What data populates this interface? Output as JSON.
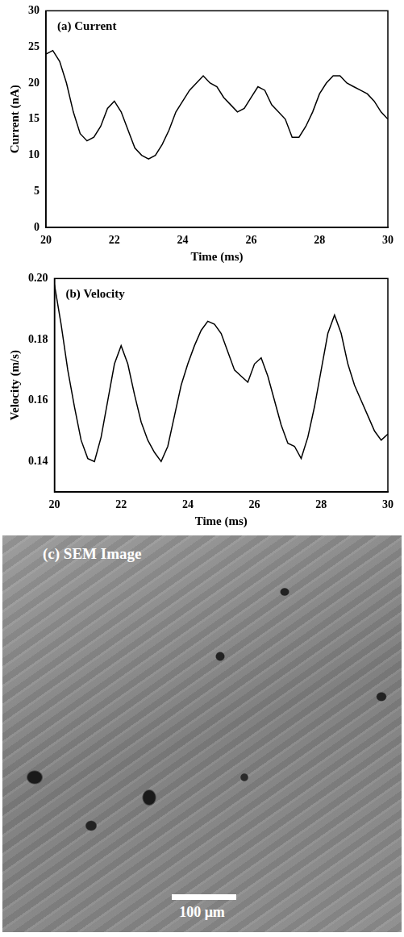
{
  "chart_data": [
    {
      "type": "line",
      "title": "(a) Current",
      "x_label": "Time (ms)",
      "y_label": "Current (nA)",
      "x": [
        20,
        20.2,
        20.4,
        20.6,
        20.8,
        21,
        21.2,
        21.4,
        21.6,
        21.8,
        22,
        22.2,
        22.4,
        22.6,
        22.8,
        23,
        23.2,
        23.4,
        23.6,
        23.8,
        24,
        24.2,
        24.4,
        24.6,
        24.8,
        25,
        25.2,
        25.4,
        25.6,
        25.8,
        26,
        26.2,
        26.4,
        26.6,
        26.8,
        27,
        27.2,
        27.4,
        27.6,
        27.8,
        28,
        28.2,
        28.4,
        28.6,
        28.8,
        29,
        29.2,
        29.4,
        29.6,
        29.8,
        30
      ],
      "values": [
        24,
        24.5,
        23,
        20,
        16,
        13,
        12,
        12.5,
        14,
        16.5,
        17.5,
        16,
        13.5,
        11,
        10,
        9.5,
        10,
        11.5,
        13.5,
        16,
        17.5,
        19,
        20,
        21,
        20,
        19.5,
        18,
        17,
        16,
        16.5,
        18,
        19.5,
        19,
        17,
        16,
        15,
        12.5,
        12.5,
        14,
        16,
        18.5,
        20,
        21,
        21,
        20,
        19.5,
        19,
        18.5,
        17.5,
        16,
        15
      ],
      "color": "#000000",
      "line_style": "solid",
      "grid": false,
      "xlim": [
        20,
        30
      ],
      "xticks": [
        20,
        22,
        24,
        26,
        28,
        30
      ],
      "ylim": [
        0,
        30
      ],
      "yticks": [
        0,
        5,
        10,
        15,
        20,
        25,
        30
      ]
    },
    {
      "type": "line",
      "title": "(b) Velocity",
      "x_label": "Time (ms)",
      "y_label": "Velocity (m/s)",
      "x": [
        20,
        20.2,
        20.4,
        20.6,
        20.8,
        21,
        21.2,
        21.4,
        21.6,
        21.8,
        22,
        22.2,
        22.4,
        22.6,
        22.8,
        23,
        23.2,
        23.4,
        23.6,
        23.8,
        24,
        24.2,
        24.4,
        24.6,
        24.8,
        25,
        25.2,
        25.4,
        25.6,
        25.8,
        26,
        26.2,
        26.4,
        26.6,
        26.8,
        27,
        27.2,
        27.4,
        27.6,
        27.8,
        28,
        28.2,
        28.4,
        28.6,
        28.8,
        29,
        29.2,
        29.4,
        29.6,
        29.8,
        30
      ],
      "values": [
        0.198,
        0.185,
        0.17,
        0.158,
        0.147,
        0.141,
        0.14,
        0.148,
        0.16,
        0.172,
        0.178,
        0.172,
        0.162,
        0.153,
        0.147,
        0.143,
        0.14,
        0.145,
        0.155,
        0.165,
        0.172,
        0.178,
        0.183,
        0.186,
        0.185,
        0.182,
        0.176,
        0.17,
        0.168,
        0.166,
        0.172,
        0.174,
        0.168,
        0.16,
        0.152,
        0.146,
        0.145,
        0.141,
        0.148,
        0.158,
        0.17,
        0.182,
        0.188,
        0.182,
        0.172,
        0.165,
        0.16,
        0.155,
        0.15,
        0.147,
        0.149
      ],
      "color": "#000000",
      "line_style": "solid",
      "grid": false,
      "xlim": [
        20,
        30
      ],
      "xticks": [
        20,
        22,
        24,
        26,
        28,
        30
      ],
      "ylim": [
        0.13,
        0.2
      ],
      "yticks": [
        0.14,
        0.16,
        0.18,
        {
          "value": 0.2,
          "label": "0.20"
        }
      ]
    }
  ],
  "image": {
    "title": "(c) SEM Image",
    "scale_bar_label": "100 μm"
  }
}
